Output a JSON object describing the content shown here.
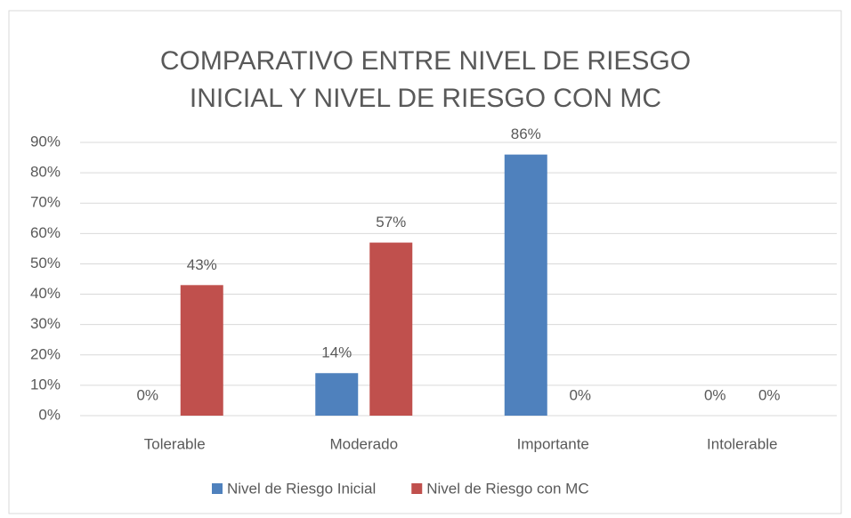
{
  "chart_data": {
    "type": "bar",
    "title": "COMPARATIVO ENTRE NIVEL DE RIESGO INICIAL Y NIVEL DE RIESGO CON MC",
    "categories": [
      "Tolerable",
      "Moderado",
      "Importante",
      "Intolerable"
    ],
    "series": [
      {
        "name": "Nivel de Riesgo Inicial",
        "color": "#4f81bd",
        "values": [
          0,
          14,
          86,
          0
        ],
        "value_labels": [
          "0%",
          "14%",
          "86%",
          "0%"
        ]
      },
      {
        "name": "Nivel de Riesgo con MC",
        "color": "#c0504d",
        "values": [
          43,
          57,
          0,
          0
        ],
        "value_labels": [
          "43%",
          "57%",
          "0%",
          "0%"
        ]
      }
    ],
    "ylim": [
      0,
      90
    ],
    "yticks": [
      {
        "value": 0,
        "label": "0%"
      },
      {
        "value": 10,
        "label": "10%"
      },
      {
        "value": 20,
        "label": "20%"
      },
      {
        "value": 30,
        "label": "30%"
      },
      {
        "value": 40,
        "label": "40%"
      },
      {
        "value": 50,
        "label": "50%"
      },
      {
        "value": 60,
        "label": "60%"
      },
      {
        "value": 70,
        "label": "70%"
      },
      {
        "value": 80,
        "label": "80%"
      },
      {
        "value": 90,
        "label": "90%"
      }
    ],
    "grid": true,
    "legend": "bottom"
  }
}
